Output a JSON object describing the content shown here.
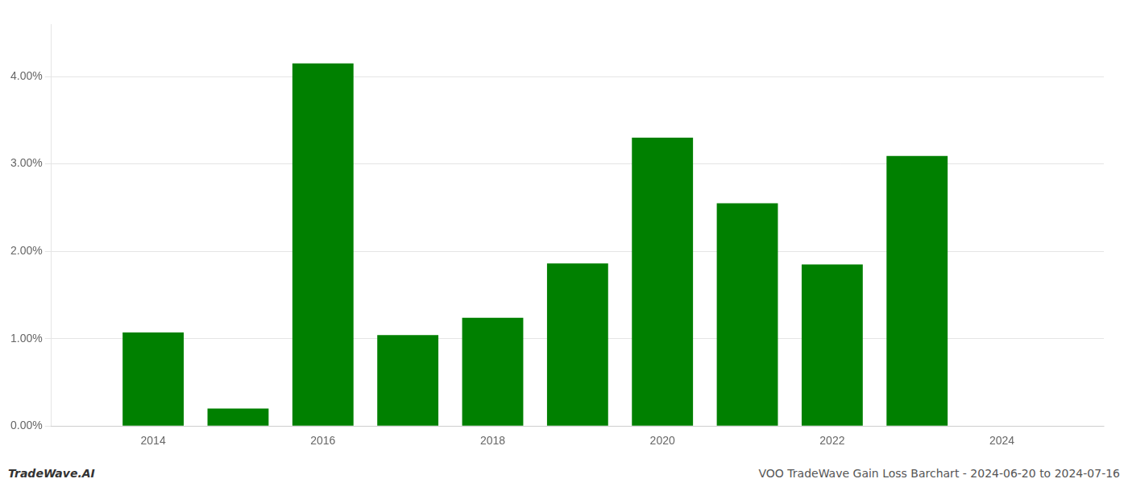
{
  "chart_data": {
    "type": "bar",
    "x": [
      2014,
      2015,
      2016,
      2017,
      2018,
      2019,
      2020,
      2021,
      2022,
      2023,
      2024
    ],
    "values": [
      1.07,
      0.2,
      4.15,
      1.04,
      1.24,
      1.86,
      3.3,
      2.55,
      1.85,
      3.09,
      0.0
    ],
    "color": "#008000",
    "xlim": [
      2012.8,
      2025.2
    ],
    "xticks": [
      2014,
      2016,
      2018,
      2020,
      2022,
      2024
    ],
    "ylim": [
      0,
      4.6
    ],
    "yticks": [
      {
        "value": 0.0,
        "label": "0.00%"
      },
      {
        "value": 1.0,
        "label": "1.00%"
      },
      {
        "value": 2.0,
        "label": "2.00%"
      },
      {
        "value": 3.0,
        "label": "3.00%"
      },
      {
        "value": 4.0,
        "label": "4.00%"
      }
    ],
    "grid": "y",
    "annotations": [
      "TradeWave.AI",
      "VOO TradeWave Gain Loss Barchart - 2024-06-20 to 2024-07-16"
    ]
  }
}
